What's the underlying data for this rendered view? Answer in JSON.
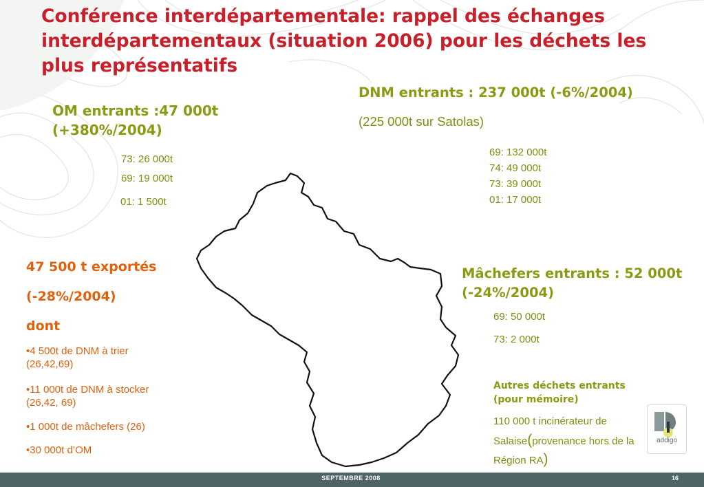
{
  "title": "Conférence interdépartementale: rappel des échanges interdépartementaux (situation 2006) pour les déchets les plus représentatifs",
  "om": {
    "heading_line1": "OM entrants :47 000t",
    "heading_line2": "(+380%/2004)",
    "items": [
      "73: 26 000t",
      "69: 19 000t",
      "01: 1 500t"
    ]
  },
  "dnm": {
    "heading": "DNM entrants : 237 000t (-6%/2004)",
    "subheading": "(225 000t sur Satolas)",
    "items": [
      "69: 132 000t",
      "74: 49 000t",
      "73: 39 000t",
      "01: 17 000t"
    ]
  },
  "exports": {
    "line1": "47 500 t exportés",
    "line2": "(-28%/2004)",
    "line3": "dont",
    "bullets": [
      {
        "line1": "•4 500t de DNM à trier",
        "line2": "(26,42,69)"
      },
      {
        "line1": "•11 000t de DNM à stocker",
        "line2": "(26,42, 69)"
      },
      {
        "line1": "•1 000t de mâchefers (26)",
        "line2": ""
      },
      {
        "line1": "•30 000t d’OM",
        "line2": ""
      }
    ]
  },
  "machefers": {
    "heading_line1": "Mâchefers entrants : 52 000t",
    "heading_line2": "(-24%/2004)",
    "items": [
      "69: 50 000t",
      "73: 2 000t"
    ]
  },
  "autres": {
    "heading_line1": "Autres déchets entrants",
    "heading_line2": "(pour mémoire)",
    "line1": "110 000 t incinérateur de",
    "line2_prefix": "Salaise",
    "paren_open": "(",
    "line2_rest": "provenance hors de la",
    "line3": "Région RA",
    "paren_close": ")"
  },
  "logo": {
    "text": "addigo"
  },
  "footer": {
    "date": "SEPTEMBRE 2008",
    "page": "16"
  },
  "colors": {
    "title": "#c8202a",
    "olive": "#8a9a12",
    "orange": "#e0620c",
    "footer": "#4f6466"
  }
}
